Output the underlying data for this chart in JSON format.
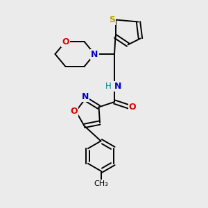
{
  "background_color": "#ebebeb",
  "bond_color": "#000000",
  "atom_colors": {
    "S": "#b8a000",
    "N": "#0000cc",
    "O": "#dd0000",
    "H": "#008888",
    "C": "#000000"
  },
  "figsize": [
    3.0,
    3.0
  ],
  "dpi": 100,
  "lw": 1.4
}
